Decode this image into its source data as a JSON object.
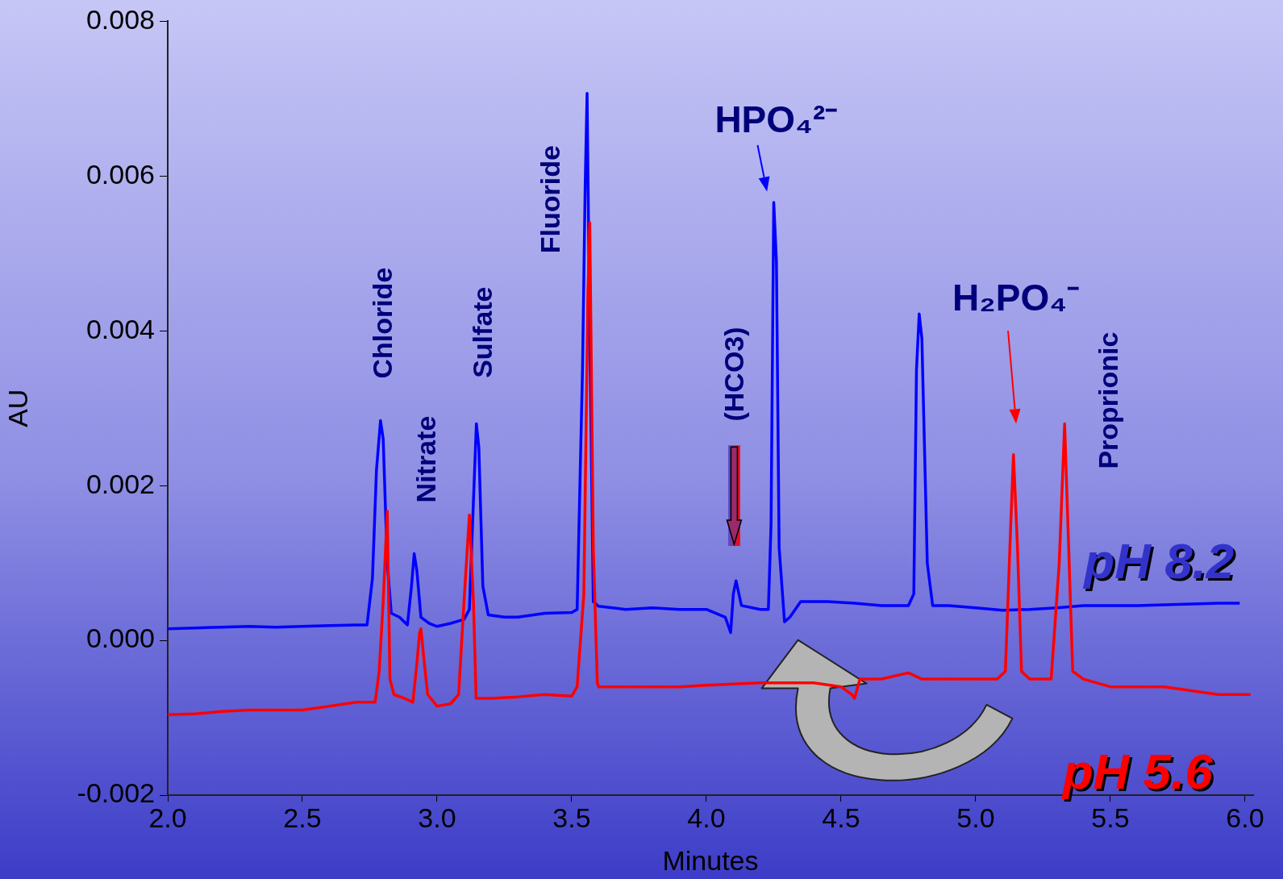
{
  "chart_data": {
    "type": "line",
    "xlabel": "Minutes",
    "ylabel": "AU",
    "xlim": [
      2,
      6.03
    ],
    "xticks": [
      {
        "value": 2,
        "label": "2.0"
      },
      {
        "value": 2.5,
        "label": "2.5"
      },
      {
        "value": 3,
        "label": "3.0"
      },
      {
        "value": 3.5,
        "label": "3.5"
      },
      {
        "value": 4,
        "label": "4.0"
      },
      {
        "value": 4.5,
        "label": "4.5"
      },
      {
        "value": 5,
        "label": "5.0"
      },
      {
        "value": 5.5,
        "label": "5.5"
      },
      {
        "value": 6,
        "label": "6.0"
      }
    ],
    "ylim": [
      -0.002,
      0.008
    ],
    "yticks": [
      {
        "value": -0.002,
        "label": "-0.002"
      },
      {
        "value": 0,
        "label": "0.000"
      },
      {
        "value": 0.002,
        "label": "0.002"
      },
      {
        "value": 0.004,
        "label": "0.004"
      },
      {
        "value": 0.006,
        "label": "0.006"
      },
      {
        "value": 0.008,
        "label": "0.008"
      }
    ],
    "grid": false,
    "legend": false,
    "marker": "none",
    "line_style": "solid",
    "series": [
      {
        "name": "pH 8.2",
        "color": "#0000ff",
        "x": [
          2.0,
          2.1,
          2.2,
          2.3,
          2.4,
          2.5,
          2.6,
          2.7,
          2.74,
          2.76,
          2.775,
          2.79,
          2.8,
          2.815,
          2.83,
          2.86,
          2.89,
          2.905,
          2.915,
          2.925,
          2.94,
          2.97,
          3.0,
          3.05,
          3.1,
          3.12,
          3.135,
          3.146,
          3.155,
          3.17,
          3.19,
          3.25,
          3.3,
          3.4,
          3.5,
          3.52,
          3.54,
          3.55,
          3.557,
          3.565,
          3.58,
          3.6,
          3.7,
          3.8,
          3.9,
          4.0,
          4.07,
          4.09,
          4.1,
          4.11,
          4.13,
          4.2,
          4.23,
          4.24,
          4.25,
          4.26,
          4.27,
          4.29,
          4.31,
          4.35,
          4.45,
          4.55,
          4.65,
          4.75,
          4.77,
          4.78,
          4.79,
          4.8,
          4.82,
          4.84,
          4.9,
          5.0,
          5.1,
          5.2,
          5.3,
          5.4,
          5.5,
          5.6,
          5.7,
          5.8,
          5.9,
          5.98
        ],
        "values": [
          0.00015,
          0.00016,
          0.00017,
          0.00018,
          0.00017,
          0.00018,
          0.00019,
          0.0002,
          0.0002,
          0.0008,
          0.0022,
          0.00284,
          0.0026,
          0.001,
          0.00035,
          0.0003,
          0.0002,
          0.0007,
          0.00112,
          0.0009,
          0.0003,
          0.00022,
          0.00018,
          0.00022,
          0.00027,
          0.0004,
          0.0018,
          0.0028,
          0.0025,
          0.0007,
          0.00033,
          0.0003,
          0.0003,
          0.00035,
          0.00036,
          0.0004,
          0.0035,
          0.0059,
          0.00707,
          0.0045,
          0.0005,
          0.00044,
          0.0004,
          0.00042,
          0.0004,
          0.0004,
          0.0003,
          0.0001,
          0.0006,
          0.00077,
          0.00045,
          0.0004,
          0.0004,
          0.0015,
          0.00566,
          0.0049,
          0.0012,
          0.00024,
          0.0003,
          0.0005,
          0.0005,
          0.00048,
          0.00045,
          0.00045,
          0.0006,
          0.0035,
          0.00422,
          0.0039,
          0.001,
          0.00045,
          0.00045,
          0.00042,
          0.00039,
          0.0004,
          0.00042,
          0.00045,
          0.00045,
          0.00045,
          0.00046,
          0.00047,
          0.00048,
          0.00048
        ]
      },
      {
        "name": "pH 5.6",
        "color": "#ff0000",
        "x": [
          2.0,
          2.1,
          2.2,
          2.3,
          2.4,
          2.5,
          2.6,
          2.7,
          2.77,
          2.785,
          2.8,
          2.815,
          2.825,
          2.84,
          2.88,
          2.91,
          2.925,
          2.935,
          2.94,
          2.95,
          2.965,
          3.0,
          3.05,
          3.08,
          3.1,
          3.12,
          3.135,
          3.145,
          3.2,
          3.3,
          3.4,
          3.5,
          3.52,
          3.545,
          3.56,
          3.567,
          3.58,
          3.595,
          3.6,
          3.7,
          3.8,
          3.9,
          4.0,
          4.2,
          4.4,
          4.5,
          4.54,
          4.55,
          4.57,
          4.65,
          4.75,
          4.8,
          4.9,
          5.0,
          5.08,
          5.11,
          5.13,
          5.14,
          5.155,
          5.17,
          5.2,
          5.28,
          5.31,
          5.33,
          5.345,
          5.36,
          5.4,
          5.5,
          5.7,
          5.8,
          5.9,
          6.02
        ],
        "values": [
          -0.00096,
          -0.00095,
          -0.00092,
          -0.0009,
          -0.0009,
          -0.0009,
          -0.00085,
          -0.0008,
          -0.0008,
          -0.0004,
          0.0005,
          0.00167,
          -0.0005,
          -0.0007,
          -0.00075,
          -0.0008,
          -0.0003,
          0.0001,
          0.00015,
          -0.0002,
          -0.0007,
          -0.00085,
          -0.00082,
          -0.0007,
          0.0005,
          0.00162,
          0.0005,
          -0.00075,
          -0.00075,
          -0.00073,
          -0.0007,
          -0.00072,
          -0.0006,
          0.0006,
          0.0045,
          0.0054,
          0.0012,
          -0.00055,
          -0.0006,
          -0.0006,
          -0.0006,
          -0.0006,
          -0.00058,
          -0.00055,
          -0.00055,
          -0.0006,
          -0.0007,
          -0.00075,
          -0.0005,
          -0.0005,
          -0.00042,
          -0.0005,
          -0.0005,
          -0.0005,
          -0.0005,
          -0.0004,
          0.0015,
          0.0024,
          0.0012,
          -0.0004,
          -0.0005,
          -0.0005,
          0.001,
          0.0028,
          0.0012,
          -0.0004,
          -0.0005,
          -0.0006,
          -0.0006,
          -0.00065,
          -0.0007,
          -0.0007
        ]
      }
    ],
    "annotations": [
      "Chloride",
      "Nitrate",
      "Sulfate",
      "Fluoride",
      "(HCO3)",
      "HPO₄²⁻",
      "H₂PO₄⁻",
      "Proprionic"
    ]
  }
}
